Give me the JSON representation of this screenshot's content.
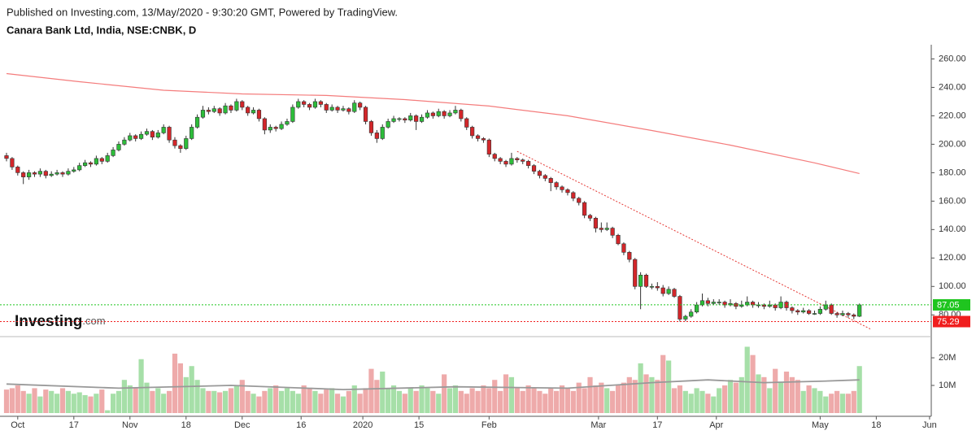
{
  "header": {
    "published": "Published on Investing.com, 13/May/2020 - 9:30:20 GMT, Powered by TradingView.",
    "symbol": "Canara Bank Ltd, India, NSE:CNBK, D"
  },
  "logo": {
    "brand": "Investing",
    "suffix": ".com"
  },
  "chart_data": [
    {
      "type": "candlestick",
      "up_color": "#2dbd3a",
      "down_color": "#d3262a",
      "ylim": [
        67,
        270
      ],
      "yticks": [
        {
          "value": 80,
          "label": "80.00"
        },
        {
          "value": 100,
          "label": "100.00"
        },
        {
          "value": 120,
          "label": "120.00"
        },
        {
          "value": 140,
          "label": "140.00"
        },
        {
          "value": 160,
          "label": "160.00"
        },
        {
          "value": 180,
          "label": "180.00"
        },
        {
          "value": 200,
          "label": "200.00"
        },
        {
          "value": 220,
          "label": "220.00"
        },
        {
          "value": 240,
          "label": "240.00"
        },
        {
          "value": 260,
          "label": "260.00"
        }
      ],
      "xlim": [
        -1.16,
        164.8
      ],
      "ohlc": [
        [
          192,
          194,
          188,
          190
        ],
        [
          190,
          191,
          182,
          184
        ],
        [
          184,
          185,
          178,
          180
        ],
        [
          180,
          181,
          172,
          177
        ],
        [
          177,
          182,
          175,
          180
        ],
        [
          180,
          181,
          177,
          179
        ],
        [
          179,
          183,
          177,
          181
        ],
        [
          181,
          182,
          176,
          178
        ],
        [
          178,
          181,
          177,
          179
        ],
        [
          179,
          182,
          178,
          180
        ],
        [
          180,
          181,
          177,
          179
        ],
        [
          179,
          183,
          178,
          181
        ],
        [
          181,
          184,
          180,
          182
        ],
        [
          182,
          187,
          181,
          185
        ],
        [
          185,
          189,
          184,
          187
        ],
        [
          187,
          188,
          184,
          186
        ],
        [
          186,
          192,
          185,
          190
        ],
        [
          190,
          191,
          186,
          188
        ],
        [
          188,
          194,
          187,
          192
        ],
        [
          192,
          198,
          191,
          196
        ],
        [
          196,
          202,
          195,
          200
        ],
        [
          200,
          205,
          199,
          203
        ],
        [
          203,
          208,
          202,
          206
        ],
        [
          206,
          207,
          202,
          204
        ],
        [
          204,
          209,
          203,
          207
        ],
        [
          207,
          211,
          206,
          209
        ],
        [
          209,
          210,
          203,
          205
        ],
        [
          205,
          210,
          204,
          208
        ],
        [
          208,
          214,
          207,
          212
        ],
        [
          212,
          213,
          201,
          203
        ],
        [
          203,
          205,
          197,
          199
        ],
        [
          199,
          200,
          194,
          197
        ],
        [
          197,
          206,
          196,
          204
        ],
        [
          204,
          214,
          203,
          212
        ],
        [
          212,
          221,
          211,
          219
        ],
        [
          219,
          227,
          218,
          224
        ],
        [
          224,
          226,
          221,
          223
        ],
        [
          223,
          227,
          222,
          225
        ],
        [
          225,
          226,
          220,
          222
        ],
        [
          222,
          229,
          221,
          227
        ],
        [
          227,
          228,
          222,
          224
        ],
        [
          224,
          232,
          223,
          230
        ],
        [
          230,
          231,
          224,
          226
        ],
        [
          226,
          227,
          220,
          222
        ],
        [
          222,
          226,
          221,
          224
        ],
        [
          224,
          225,
          216,
          218
        ],
        [
          218,
          219,
          207,
          210
        ],
        [
          210,
          214,
          208,
          212
        ],
        [
          212,
          213,
          209,
          211
        ],
        [
          211,
          216,
          210,
          214
        ],
        [
          214,
          218,
          213,
          216
        ],
        [
          216,
          228,
          215,
          226
        ],
        [
          226,
          232,
          225,
          230
        ],
        [
          230,
          231,
          226,
          228
        ],
        [
          228,
          229,
          224,
          226
        ],
        [
          226,
          232,
          225,
          230
        ],
        [
          230,
          231,
          226,
          228
        ],
        [
          228,
          229,
          222,
          224
        ],
        [
          224,
          228,
          223,
          226
        ],
        [
          226,
          227,
          222,
          224
        ],
        [
          224,
          227,
          223,
          225
        ],
        [
          225,
          226,
          221,
          223
        ],
        [
          223,
          231,
          222,
          229
        ],
        [
          229,
          230,
          224,
          226
        ],
        [
          226,
          227,
          214,
          216
        ],
        [
          216,
          217,
          206,
          208
        ],
        [
          208,
          210,
          201,
          204
        ],
        [
          204,
          214,
          203,
          212
        ],
        [
          212,
          218,
          211,
          216
        ],
        [
          216,
          220,
          215,
          218
        ],
        [
          218,
          219,
          216,
          218
        ],
        [
          218,
          219,
          215,
          217
        ],
        [
          217,
          222,
          216,
          220
        ],
        [
          220,
          221,
          210,
          216
        ],
        [
          216,
          221,
          215,
          219
        ],
        [
          219,
          224,
          218,
          222
        ],
        [
          222,
          223,
          218,
          220
        ],
        [
          220,
          225,
          219,
          223
        ],
        [
          223,
          224,
          218,
          220
        ],
        [
          220,
          224,
          219,
          222
        ],
        [
          222,
          227,
          221,
          224
        ],
        [
          224,
          225,
          216,
          218
        ],
        [
          218,
          219,
          210,
          212
        ],
        [
          212,
          213,
          204,
          206
        ],
        [
          206,
          207,
          202,
          204
        ],
        [
          204,
          205,
          201,
          203
        ],
        [
          203,
          204,
          191,
          193
        ],
        [
          193,
          194,
          188,
          190
        ],
        [
          190,
          191,
          186,
          188
        ],
        [
          188,
          189,
          184,
          186
        ],
        [
          186,
          194,
          185,
          190
        ],
        [
          190,
          191,
          187,
          189
        ],
        [
          189,
          190,
          186,
          188
        ],
        [
          188,
          189,
          183,
          185
        ],
        [
          185,
          186,
          179,
          181
        ],
        [
          181,
          182,
          176,
          178
        ],
        [
          178,
          179,
          174,
          176
        ],
        [
          176,
          177,
          167,
          173
        ],
        [
          173,
          174,
          168,
          170
        ],
        [
          170,
          171,
          166,
          168
        ],
        [
          168,
          169,
          164,
          166
        ],
        [
          166,
          167,
          160,
          162
        ],
        [
          162,
          163,
          157,
          159
        ],
        [
          159,
          160,
          148,
          150
        ],
        [
          150,
          151,
          146,
          148
        ],
        [
          148,
          149,
          138,
          141
        ],
        [
          141,
          145,
          138,
          140
        ],
        [
          140,
          145,
          139,
          141
        ],
        [
          141,
          142,
          134,
          136
        ],
        [
          136,
          137,
          129,
          130
        ],
        [
          130,
          131,
          122,
          124
        ],
        [
          124,
          125,
          117,
          119
        ],
        [
          119,
          120,
          98,
          100
        ],
        [
          100,
          110,
          84,
          108
        ],
        [
          108,
          109,
          99,
          100
        ],
        [
          100,
          102,
          98,
          100
        ],
        [
          100,
          103,
          97,
          99
        ],
        [
          99,
          101,
          93,
          95
        ],
        [
          95,
          100,
          94,
          98
        ],
        [
          98,
          99,
          92,
          93
        ],
        [
          93,
          94,
          75.29,
          77
        ],
        [
          77,
          80,
          75.5,
          79
        ],
        [
          79,
          84,
          78,
          82
        ],
        [
          82,
          89,
          81,
          87
        ],
        [
          87,
          95,
          86,
          90
        ],
        [
          90,
          92,
          86,
          88
        ],
        [
          88,
          91,
          87,
          89
        ],
        [
          89,
          91,
          87,
          89
        ],
        [
          89,
          90,
          85,
          87
        ],
        [
          87,
          91,
          86,
          88
        ],
        [
          88,
          89,
          84,
          86
        ],
        [
          86,
          90,
          85,
          87
        ],
        [
          87,
          93,
          86,
          89
        ],
        [
          89,
          90,
          85,
          87
        ],
        [
          87,
          89,
          85,
          87
        ],
        [
          87,
          88,
          84,
          86
        ],
        [
          86,
          90,
          85,
          87
        ],
        [
          87,
          88,
          83,
          85
        ],
        [
          85,
          93,
          84,
          89
        ],
        [
          89,
          90,
          83,
          85
        ],
        [
          85,
          86,
          81,
          83
        ],
        [
          83,
          84,
          80,
          82
        ],
        [
          82,
          85,
          81,
          83
        ],
        [
          83,
          84,
          80,
          81
        ],
        [
          81,
          83,
          80,
          81
        ],
        [
          81,
          86,
          80,
          84
        ],
        [
          84,
          90,
          83,
          87
        ],
        [
          87,
          88,
          80,
          81
        ],
        [
          81,
          82,
          78,
          80
        ],
        [
          80,
          83,
          79,
          81
        ],
        [
          81,
          82,
          78,
          80
        ],
        [
          80,
          81,
          77,
          79
        ],
        [
          79,
          88,
          78.5,
          87.05
        ]
      ],
      "moving_average": {
        "color": "#f47c7c",
        "x": [
          0,
          13,
          28,
          42,
          57,
          71,
          86,
          100,
          115,
          129,
          144,
          152
        ],
        "values": [
          249.7,
          244,
          238,
          235.4,
          234.3,
          231.4,
          226.9,
          220,
          209.7,
          199.4,
          186.9,
          179.4
        ]
      },
      "trendline": {
        "color": "#e53935",
        "x": [
          91,
          154
        ],
        "values": [
          195,
          70
        ]
      },
      "last_price": 87.05,
      "last_price_color": "#1fc51f",
      "support": 75.29,
      "support_color": "#f01e1e"
    },
    {
      "type": "bar",
      "up_color": "#a6dfa8",
      "down_color": "#eeaaaa",
      "ylim": [
        0,
        25.9
      ],
      "yticks": [
        {
          "value": 10,
          "label": "10M"
        },
        {
          "value": 20,
          "label": "20M"
        }
      ],
      "xlim": [
        -1.16,
        164.8
      ],
      "xticks": [
        {
          "value": 2,
          "label": "Oct"
        },
        {
          "value": 12,
          "label": "17"
        },
        {
          "value": 22,
          "label": "Nov"
        },
        {
          "value": 32,
          "label": "18"
        },
        {
          "value": 42,
          "label": "Dec"
        },
        {
          "value": 52.5,
          "label": "16"
        },
        {
          "value": 63.5,
          "label": "2020"
        },
        {
          "value": 73.5,
          "label": "15"
        },
        {
          "value": 86,
          "label": "Feb"
        },
        {
          "value": 105.5,
          "label": "Mar"
        },
        {
          "value": 116,
          "label": "17"
        },
        {
          "value": 126.5,
          "label": "Apr"
        },
        {
          "value": 145,
          "label": "May"
        },
        {
          "value": 155,
          "label": "18"
        },
        {
          "value": 164.5,
          "label": "Jun"
        }
      ],
      "values": [
        8.5,
        9,
        10,
        8,
        7,
        9,
        6,
        8.5,
        8,
        7,
        9,
        8,
        7,
        7.5,
        6.5,
        6,
        7,
        8.5,
        1,
        7,
        8,
        12,
        10,
        9,
        19.5,
        11,
        8,
        9,
        7,
        8,
        21.5,
        18,
        13,
        17,
        12,
        9,
        8,
        8,
        7.5,
        8,
        9,
        10,
        12,
        8,
        7,
        6,
        8,
        9,
        10,
        8,
        9,
        8,
        7,
        10,
        9,
        8,
        7,
        8.5,
        9,
        7,
        6,
        8,
        10,
        7,
        9,
        16,
        12,
        15,
        9,
        10,
        8,
        7,
        9,
        8,
        10,
        9,
        8,
        7,
        14,
        9,
        10,
        8,
        7,
        9,
        8,
        10,
        9,
        12,
        8,
        14,
        13,
        9,
        8,
        10,
        9,
        8,
        7,
        9,
        8,
        10,
        9,
        8,
        11,
        9,
        13,
        10,
        11,
        9,
        8,
        10,
        11,
        13,
        12,
        18,
        14,
        13,
        12,
        21,
        19,
        9,
        10,
        8,
        7,
        9,
        8,
        7,
        6,
        9,
        10,
        12,
        11,
        13,
        24,
        21,
        14,
        13,
        9,
        16,
        11,
        15,
        13,
        12,
        8,
        10,
        9,
        8,
        6,
        7,
        8,
        7,
        7,
        8,
        17
      ],
      "moving_average": {
        "color": "#999999",
        "x": [
          0,
          20,
          40,
          60,
          80,
          100,
          115,
          125,
          135,
          145,
          152
        ],
        "values": [
          10.5,
          9,
          10,
          8.5,
          9.5,
          9,
          11,
          12,
          11,
          11.5,
          12
        ]
      }
    }
  ]
}
